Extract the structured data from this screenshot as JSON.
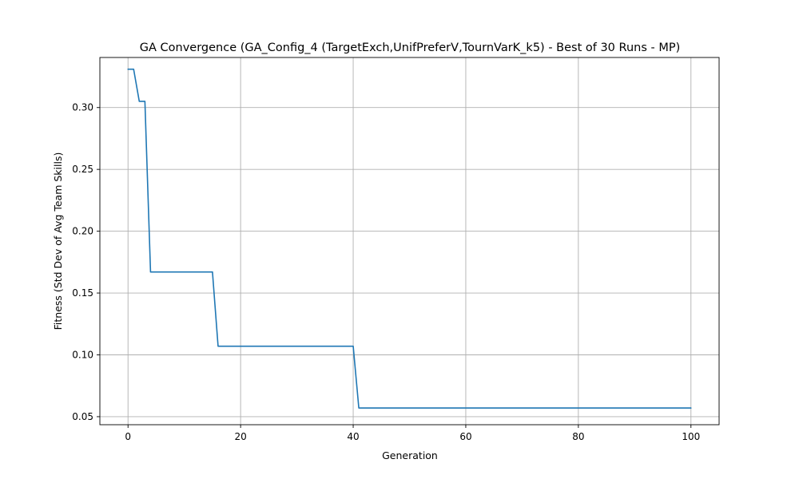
{
  "chart_data": {
    "type": "line",
    "title": "GA Convergence (GA_Config_4 (TargetExch,UnifPreferV,TournVarK_k5) - Best of 30 Runs - MP)",
    "xlabel": "Generation",
    "ylabel": "Fitness (Std Dev of Avg Team Skills)",
    "xlim": [
      -5,
      105
    ],
    "ylim": [
      0.0435,
      0.3405
    ],
    "xticks": [
      0,
      20,
      40,
      60,
      80,
      100
    ],
    "xtick_labels": [
      "0",
      "20",
      "40",
      "60",
      "80",
      "100"
    ],
    "yticks": [
      0.05,
      0.1,
      0.15,
      0.2,
      0.25,
      0.3
    ],
    "ytick_labels": [
      "0.05",
      "0.10",
      "0.15",
      "0.20",
      "0.25",
      "0.30"
    ],
    "grid": true,
    "legend": "none",
    "series": [
      {
        "color": "#1f77b4",
        "x": [
          0,
          1,
          2,
          3,
          4,
          5,
          6,
          7,
          8,
          9,
          10,
          11,
          12,
          13,
          14,
          15,
          16,
          17,
          18,
          19,
          20,
          21,
          22,
          23,
          24,
          25,
          26,
          27,
          28,
          29,
          30,
          31,
          32,
          33,
          34,
          35,
          36,
          37,
          38,
          39,
          40,
          41,
          42,
          43,
          44,
          45,
          46,
          47,
          48,
          49,
          50,
          51,
          52,
          53,
          54,
          55,
          56,
          57,
          58,
          59,
          60,
          61,
          62,
          63,
          64,
          65,
          66,
          67,
          68,
          69,
          70,
          71,
          72,
          73,
          74,
          75,
          76,
          77,
          78,
          79,
          80,
          81,
          82,
          83,
          84,
          85,
          86,
          87,
          88,
          89,
          90,
          91,
          92,
          93,
          94,
          95,
          96,
          97,
          98,
          99,
          100
        ],
        "y": [
          0.331,
          0.331,
          0.305,
          0.305,
          0.167,
          0.167,
          0.167,
          0.167,
          0.167,
          0.167,
          0.167,
          0.167,
          0.167,
          0.167,
          0.167,
          0.167,
          0.107,
          0.107,
          0.107,
          0.107,
          0.107,
          0.107,
          0.107,
          0.107,
          0.107,
          0.107,
          0.107,
          0.107,
          0.107,
          0.107,
          0.107,
          0.107,
          0.107,
          0.107,
          0.107,
          0.107,
          0.107,
          0.107,
          0.107,
          0.107,
          0.107,
          0.057,
          0.057,
          0.057,
          0.057,
          0.057,
          0.057,
          0.057,
          0.057,
          0.057,
          0.057,
          0.057,
          0.057,
          0.057,
          0.057,
          0.057,
          0.057,
          0.057,
          0.057,
          0.057,
          0.057,
          0.057,
          0.057,
          0.057,
          0.057,
          0.057,
          0.057,
          0.057,
          0.057,
          0.057,
          0.057,
          0.057,
          0.057,
          0.057,
          0.057,
          0.057,
          0.057,
          0.057,
          0.057,
          0.057,
          0.057,
          0.057,
          0.057,
          0.057,
          0.057,
          0.057,
          0.057,
          0.057,
          0.057,
          0.057,
          0.057,
          0.057,
          0.057,
          0.057,
          0.057,
          0.057,
          0.057,
          0.057,
          0.057,
          0.057,
          0.057
        ]
      }
    ]
  }
}
